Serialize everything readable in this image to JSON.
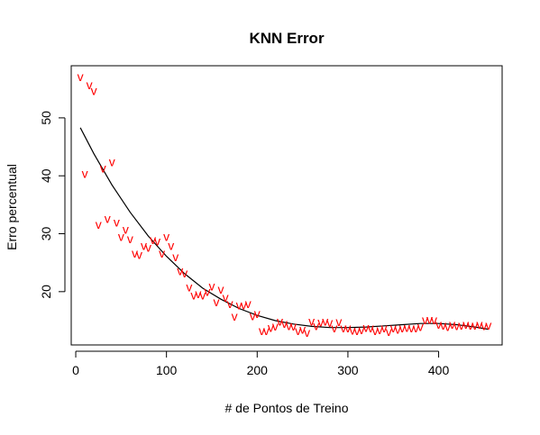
{
  "chart_data": {
    "type": "scatter",
    "title": "KNN Error",
    "xlabel": "# de Pontos de Treino",
    "ylabel": "Erro percentual",
    "xlim": [
      -5,
      470
    ],
    "ylim": [
      10.8,
      59
    ],
    "x_ticks": [
      0,
      100,
      200,
      300,
      400
    ],
    "y_ticks": [
      20,
      30,
      40,
      50
    ],
    "grid": false,
    "point_symbol": "v",
    "point_color": "#ff0000",
    "line_color": "#000000",
    "points": {
      "x": [
        5,
        10,
        15,
        20,
        25,
        30,
        35,
        40,
        45,
        50,
        55,
        60,
        65,
        70,
        75,
        80,
        85,
        90,
        95,
        100,
        105,
        110,
        115,
        120,
        125,
        130,
        135,
        140,
        145,
        150,
        155,
        160,
        165,
        170,
        175,
        180,
        185,
        190,
        195,
        200,
        205,
        210,
        215,
        220,
        225,
        230,
        235,
        240,
        245,
        250,
        255,
        260,
        265,
        270,
        275,
        280,
        285,
        290,
        295,
        300,
        305,
        310,
        315,
        320,
        325,
        330,
        335,
        340,
        345,
        350,
        355,
        360,
        365,
        370,
        375,
        380,
        385,
        390,
        395,
        400,
        405,
        410,
        415,
        420,
        425,
        430,
        435,
        440,
        445,
        450,
        455
      ],
      "y": [
        57.0,
        40.3,
        55.6,
        54.6,
        31.5,
        41.2,
        32.5,
        42.3,
        31.9,
        29.4,
        30.6,
        29.0,
        26.5,
        26.3,
        27.8,
        27.5,
        28.8,
        28.6,
        26.5,
        29.4,
        27.8,
        25.9,
        23.5,
        23.1,
        20.7,
        19.3,
        19.5,
        19.3,
        19.9,
        20.8,
        18.1,
        20.3,
        18.9,
        17.8,
        15.6,
        17.6,
        17.6,
        17.8,
        15.7,
        16.1,
        13.1,
        13.1,
        13.7,
        13.9,
        14.8,
        14.4,
        14.0,
        13.9,
        13.1,
        13.4,
        12.8,
        14.8,
        14.0,
        14.6,
        14.8,
        14.5,
        13.6,
        14.7,
        13.6,
        13.6,
        13.2,
        13.1,
        13.3,
        13.7,
        13.6,
        13.1,
        13.3,
        13.6,
        13.0,
        13.6,
        13.4,
        13.6,
        13.7,
        13.6,
        13.6,
        13.8,
        15.0,
        15.1,
        15.0,
        14.2,
        14.1,
        13.8,
        14.2,
        14.0,
        14.1,
        14.2,
        14.1,
        14.1,
        14.2,
        14.0,
        14.1
      ]
    },
    "trend": {
      "x": [
        5,
        20,
        40,
        60,
        80,
        100,
        120,
        140,
        160,
        180,
        200,
        220,
        240,
        260,
        280,
        300,
        320,
        340,
        360,
        380,
        400,
        420,
        440,
        455
      ],
      "y": [
        48.3,
        43.8,
        38.4,
        33.7,
        29.6,
        26.1,
        23.1,
        20.6,
        18.7,
        17.1,
        15.9,
        15.0,
        14.4,
        14.0,
        13.8,
        13.8,
        13.9,
        14.1,
        14.3,
        14.5,
        14.5,
        14.3,
        13.9,
        13.5
      ]
    }
  }
}
